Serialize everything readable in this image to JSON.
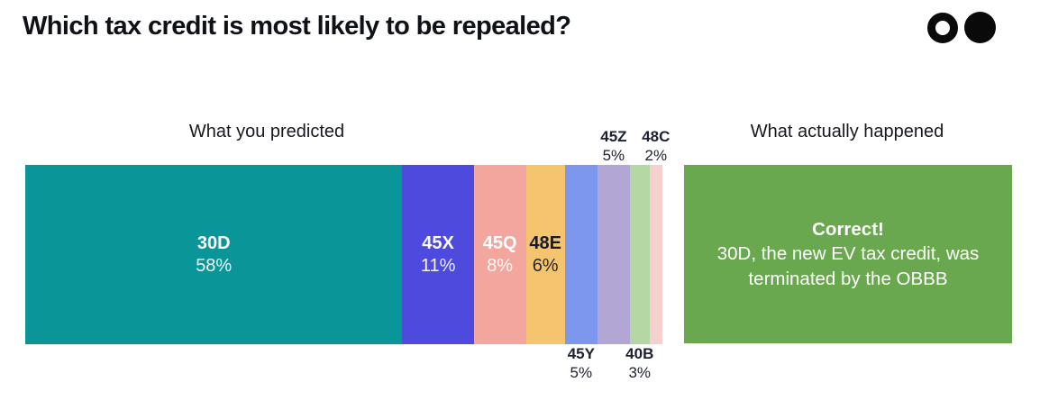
{
  "title": "Which tax credit is most likely to be repealed?",
  "logo": {
    "left_icon": "ring-circle",
    "right_icon": "filled-circle",
    "color": "#0a0a0a"
  },
  "columns": {
    "predicted_label": "What you predicted",
    "actual_label": "What actually happened"
  },
  "chart_data": {
    "type": "bar",
    "variant": "horizontal-stacked-single-bar",
    "title": "What you predicted",
    "total": 98,
    "segments": [
      {
        "label": "30D",
        "value": 58,
        "display": "58%",
        "color": "#0a9599",
        "text_color": "#ffffff",
        "label_position": "inside"
      },
      {
        "label": "45X",
        "value": 11,
        "display": "11%",
        "color": "#4f4ade",
        "text_color": "#ffffff",
        "label_position": "inside"
      },
      {
        "label": "45Q",
        "value": 8,
        "display": "8%",
        "color": "#f2a69e",
        "text_color": "#ffffff",
        "label_position": "inside"
      },
      {
        "label": "48E",
        "value": 6,
        "display": "6%",
        "color": "#f5c46e",
        "text_color": "#17192c",
        "label_position": "inside"
      },
      {
        "label": "45Y",
        "value": 5,
        "display": "5%",
        "color": "#7d96ee",
        "text_color": "#1c2030",
        "label_position": "below"
      },
      {
        "label": "45Z",
        "value": 5,
        "display": "5%",
        "color": "#b2a6d5",
        "text_color": "#1c2030",
        "label_position": "above"
      },
      {
        "label": "40B",
        "value": 3,
        "display": "3%",
        "color": "#b5d7a3",
        "text_color": "#1c2030",
        "label_position": "below"
      },
      {
        "label": "48C",
        "value": 2,
        "display": "2%",
        "color": "#f4d0cf",
        "text_color": "#1c2030",
        "label_position": "above"
      }
    ]
  },
  "result": {
    "headline": "Correct!",
    "line1": "30D, the new EV tax credit, was",
    "line2": "terminated by the OBBB",
    "color": "#6aa84f",
    "text_color": "#ffffff"
  }
}
